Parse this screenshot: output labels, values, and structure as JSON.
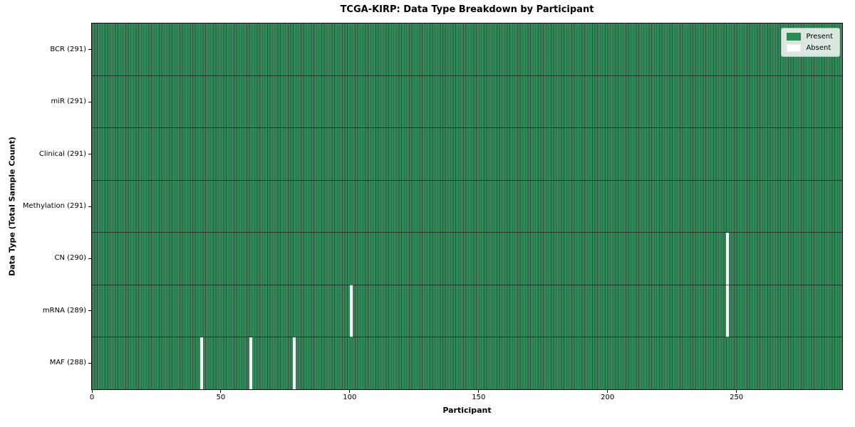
{
  "chart_data": {
    "type": "heatmap",
    "title": "TCGA-KIRP: Data Type Breakdown by Participant",
    "xlabel": "Participant",
    "ylabel": "Data Type (Total Sample Count)",
    "x_range": [
      0,
      291
    ],
    "n_participants": 291,
    "x_ticks": [
      0,
      50,
      100,
      150,
      200,
      250
    ],
    "rows": [
      {
        "label": "BCR (291)",
        "data_type": "BCR",
        "present_count": 291,
        "absent_participants": []
      },
      {
        "label": "miR (291)",
        "data_type": "miR",
        "present_count": 291,
        "absent_participants": []
      },
      {
        "label": "Clinical (291)",
        "data_type": "Clinical",
        "present_count": 291,
        "absent_participants": []
      },
      {
        "label": "Methylation (291)",
        "data_type": "Methylation",
        "present_count": 291,
        "absent_participants": []
      },
      {
        "label": "CN (290)",
        "data_type": "CN",
        "present_count": 290,
        "absent_participants": [
          246
        ]
      },
      {
        "label": "mRNA (289)",
        "data_type": "mRNA",
        "present_count": 289,
        "absent_participants": [
          100,
          246
        ]
      },
      {
        "label": "MAF (288)",
        "data_type": "MAF",
        "present_count": 288,
        "absent_participants": [
          42,
          61,
          78
        ]
      }
    ],
    "legend": {
      "position": "upper right",
      "entries": [
        {
          "label": "Present",
          "color": "#2e8b57"
        },
        {
          "label": "Absent",
          "color": "#ffffff"
        }
      ]
    },
    "colors": {
      "present": "#2e8b57",
      "absent": "#ffffff",
      "cell_edge": "#12361f",
      "row_divider": "#1c1c1c",
      "axis": "#000000"
    },
    "grid": "cell-edges",
    "legend_position": "upper-right"
  }
}
